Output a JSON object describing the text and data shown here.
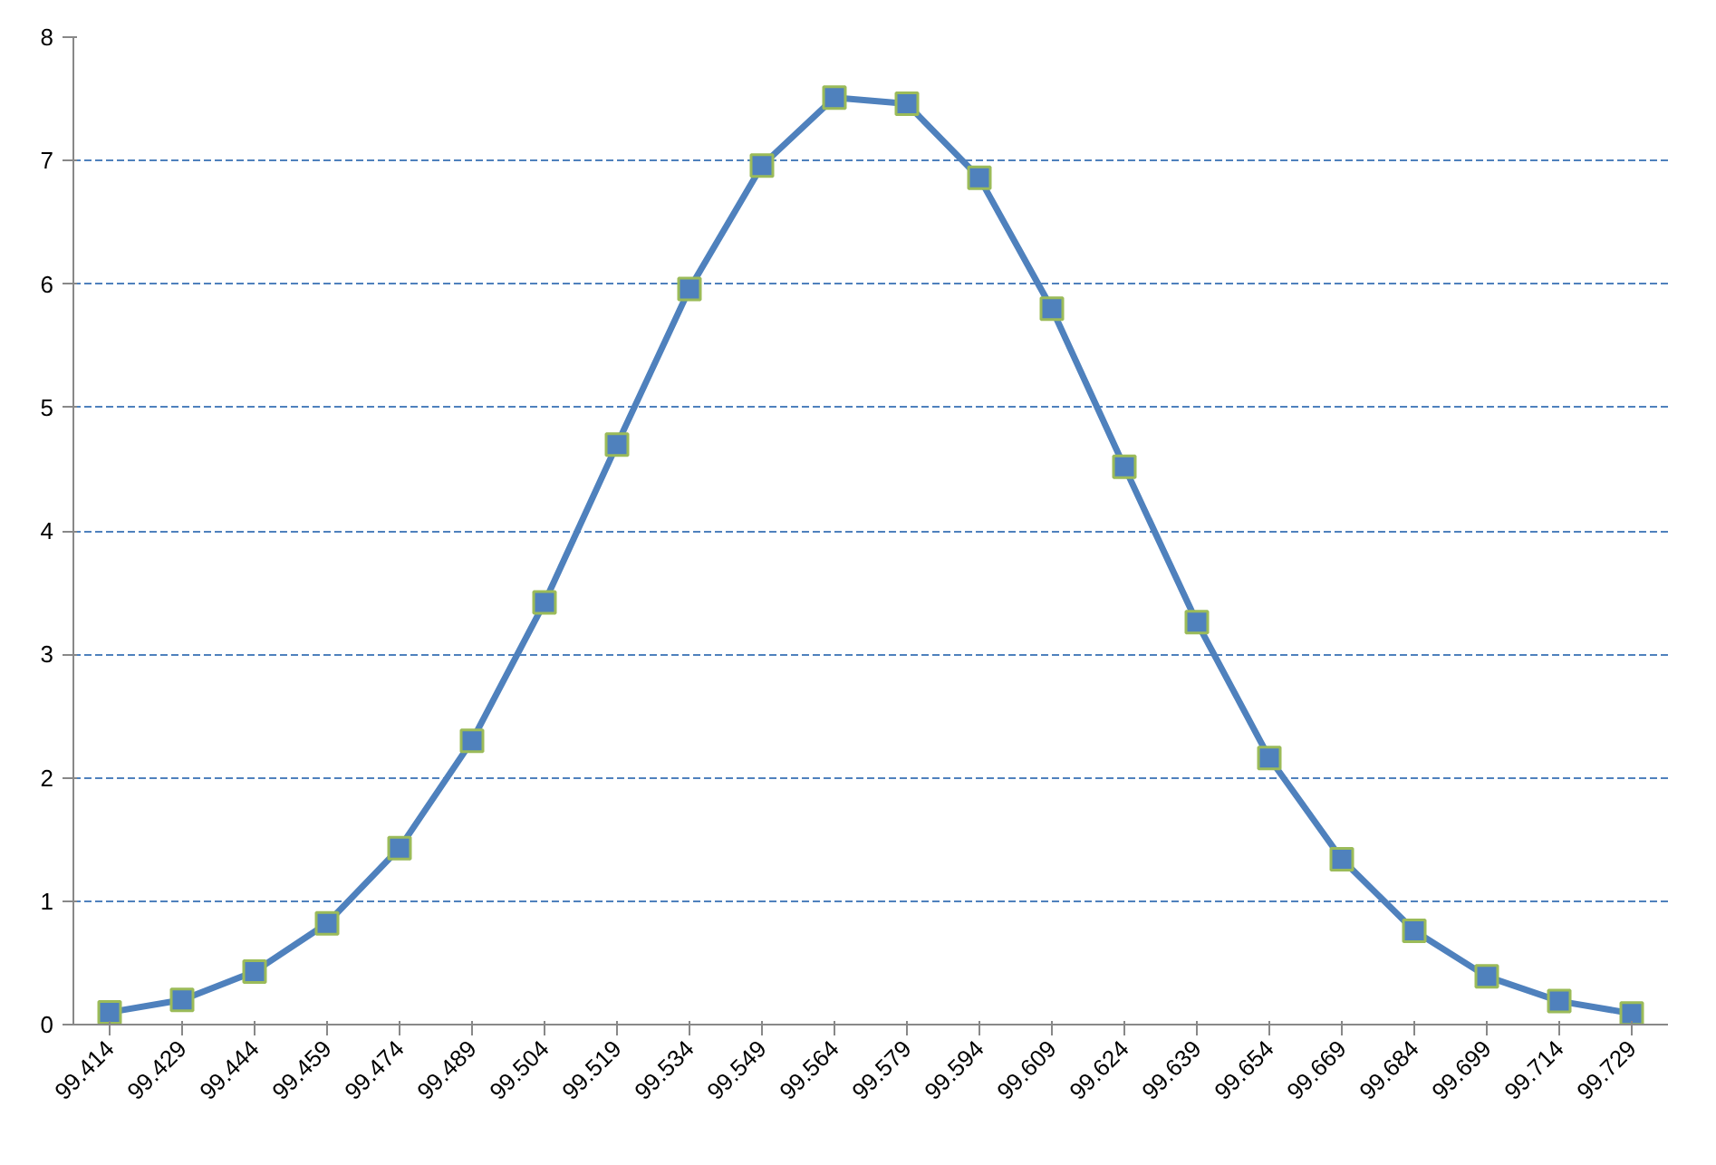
{
  "chart_data": {
    "type": "line",
    "categories": [
      "99.414",
      "99.429",
      "99.444",
      "99.459",
      "99.474",
      "99.489",
      "99.504",
      "99.519",
      "99.534",
      "99.549",
      "99.564",
      "99.579",
      "99.594",
      "99.609",
      "99.624",
      "99.639",
      "99.654",
      "99.669",
      "99.684",
      "99.699",
      "99.714",
      "99.729"
    ],
    "series": [
      {
        "color": "#4f81bd",
        "values": [
          0.1,
          0.2,
          0.43,
          0.82,
          1.43,
          2.3,
          3.42,
          4.7,
          5.96,
          6.96,
          7.51,
          7.46,
          6.86,
          5.8,
          4.52,
          3.26,
          2.16,
          1.34,
          0.76,
          0.39,
          0.19,
          0.09
        ]
      }
    ],
    "ylim": [
      0,
      8
    ],
    "yticks": [
      0,
      1,
      2,
      3,
      4,
      5,
      6,
      7,
      8
    ],
    "grid": "y",
    "marker": "square",
    "line_style": "solid"
  }
}
